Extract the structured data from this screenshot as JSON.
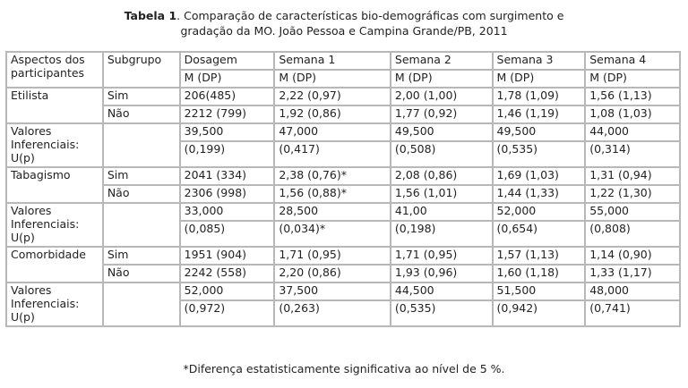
{
  "caption": {
    "label": "Tabela 1",
    "line1": ". Comparação de características bio-demográficas com surgimento e",
    "line2": "gradação da MO. João Pessoa e Campina  Grande/PB, 2011"
  },
  "header": {
    "aspects": "Aspectos dos participantes",
    "subgroup": "Subgrupo",
    "columns": [
      "Dosagem",
      "Semana 1",
      "Semana 2",
      "Semana 3",
      "Semana 4"
    ],
    "unit": "M (DP)"
  },
  "sections": [
    {
      "aspect": "Etilista",
      "rows": [
        {
          "sub": "Sim",
          "vals": [
            "206(485)",
            "2,22  (0,97)",
            "2,00 (1,00)",
            "1,78  (1,09)",
            "1,56 (1,13)"
          ]
        },
        {
          "sub": "Não",
          "vals": [
            "2212 (799)",
            "1,92 (0,86)",
            "1,77 (0,92)",
            "1,46 (1,19)",
            "1,08 (1,03)"
          ]
        }
      ],
      "inference_label": "Valores Inferenciais: U(p)",
      "u": [
        "39,500",
        "47,000",
        "49,500",
        "49,500",
        "44,000"
      ],
      "p": [
        "(0,199)",
        "(0,417)",
        "(0,508)",
        "(0,535)",
        "(0,314)"
      ]
    },
    {
      "aspect": "Tabagismo",
      "rows": [
        {
          "sub": "Sim",
          "vals": [
            "2041 (334)",
            "2,38  (0,76)*",
            "2,08 (0,86)",
            "1,69 (1,03)",
            "1,31 (0,94)"
          ]
        },
        {
          "sub": "Não",
          "vals": [
            "2306 (998)",
            "1,56 (0,88)*",
            "1,56 (1,01)",
            "1,44 (1,33)",
            "1,22 (1,30)"
          ]
        }
      ],
      "inference_label": "Valores Inferenciais: U(p)",
      "u": [
        "33,000",
        "28,500",
        "41,00",
        "52,000",
        "55,000"
      ],
      "p": [
        "(0,085)",
        "(0,034)*",
        "(0,198)",
        "(0,654)",
        "(0,808)"
      ]
    },
    {
      "aspect": "Comorbidade",
      "rows": [
        {
          "sub": "Sim",
          "vals": [
            "1951 (904)",
            "1,71 (0,95)",
            "1,71 (0,95)",
            "1,57 (1,13)",
            "1,14 (0,90)"
          ]
        },
        {
          "sub": "Não",
          "vals": [
            "2242 (558)",
            "2,20 (0,86)",
            "1,93 (0,96)",
            "1,60 (1,18)",
            "1,33  (1,17)"
          ]
        }
      ],
      "inference_label": "Valores Inferenciais: U(p)",
      "u": [
        "52,000",
        "37,500",
        "44,500",
        "51,500",
        "48,000"
      ],
      "p": [
        "(0,972)",
        "(0,263)",
        "(0,535)",
        "(0,942)",
        "(0,741)"
      ]
    }
  ],
  "footnote": "*Diferença estatisticamente significativa ao nível de 5 %."
}
